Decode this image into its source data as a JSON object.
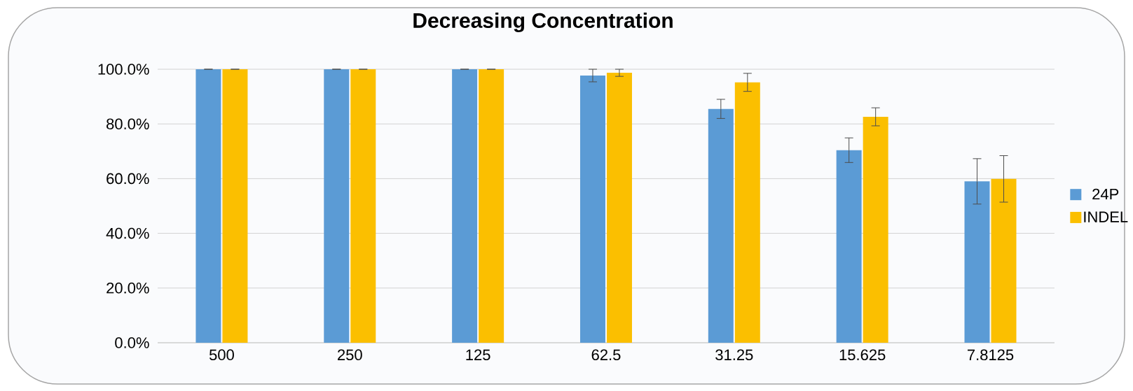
{
  "chart_data": {
    "type": "bar",
    "title": "Decreasing Concentration",
    "categories": [
      "500",
      "250",
      "125",
      "62.5",
      "31.25",
      "15.625",
      "7.8125"
    ],
    "series": [
      {
        "name": "24P",
        "color": "#5b9bd5",
        "values": [
          100,
          100,
          100,
          97.7,
          85.5,
          70.4,
          59.0
        ],
        "errors": [
          0,
          0,
          0,
          2.3,
          3.5,
          4.5,
          8.3
        ]
      },
      {
        "name": "INDEL",
        "color": "#fbbf00",
        "values": [
          100,
          100,
          100,
          98.7,
          95.2,
          82.6,
          59.9
        ],
        "errors": [
          0,
          0,
          0,
          1.3,
          3.3,
          3.3,
          8.5
        ]
      }
    ],
    "ylim": [
      0,
      100
    ],
    "yticks": [
      {
        "value": 0,
        "label": "0.0%"
      },
      {
        "value": 20,
        "label": "20.0%"
      },
      {
        "value": 40,
        "label": "40.0%"
      },
      {
        "value": 60,
        "label": "60.0%"
      },
      {
        "value": 80,
        "label": "80.0%"
      },
      {
        "value": 100,
        "label": "100.0%"
      }
    ],
    "grid": "y",
    "legend": "right"
  }
}
